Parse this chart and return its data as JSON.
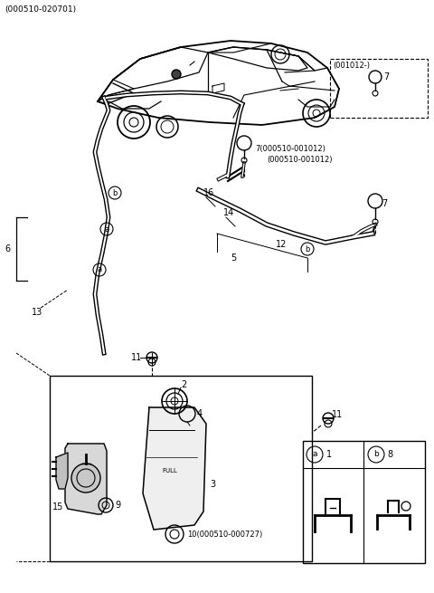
{
  "bg_color": "#ffffff",
  "line_color": "#000000",
  "header": "(000510-020701)",
  "dashed_box_label": "(001012-)",
  "item7_code1": "7(000510-001012)",
  "item7_code2": "(000510-001012)",
  "item10_code": "10(000510-000727)"
}
